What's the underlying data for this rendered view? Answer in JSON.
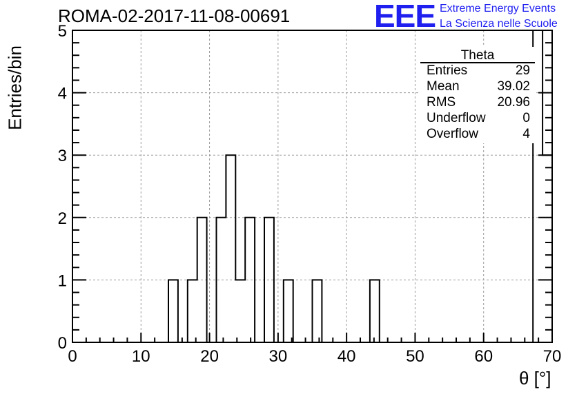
{
  "header": {
    "run_id": "ROMA-02-2017-11-08-00691",
    "logo": "EEE",
    "logo_line1": "Extreme Energy Events",
    "logo_line2": "La Scienza nelle Scuole"
  },
  "stats": {
    "name": "Theta",
    "rows": [
      {
        "key": "Entries",
        "value": "29"
      },
      {
        "key": "Mean",
        "value": "39.02"
      },
      {
        "key": "RMS",
        "value": "20.96"
      },
      {
        "key": "Underflow",
        "value": "0"
      },
      {
        "key": "Overflow",
        "value": "4"
      }
    ]
  },
  "chart_data": {
    "type": "bar",
    "histogram": true,
    "bin_width": 1.4,
    "bins": [
      {
        "x0": 14.0,
        "x1": 15.4,
        "count": 1
      },
      {
        "x0": 16.8,
        "x1": 18.2,
        "count": 1
      },
      {
        "x0": 18.2,
        "x1": 19.6,
        "count": 2
      },
      {
        "x0": 21.0,
        "x1": 22.4,
        "count": 2
      },
      {
        "x0": 22.4,
        "x1": 23.8,
        "count": 3
      },
      {
        "x0": 23.8,
        "x1": 25.2,
        "count": 1
      },
      {
        "x0": 25.2,
        "x1": 26.6,
        "count": 2
      },
      {
        "x0": 28.0,
        "x1": 29.4,
        "count": 2
      },
      {
        "x0": 30.8,
        "x1": 32.2,
        "count": 1
      },
      {
        "x0": 35.0,
        "x1": 36.4,
        "count": 1
      },
      {
        "x0": 43.4,
        "x1": 44.8,
        "count": 1
      },
      {
        "x0": 67.2,
        "x1": 68.6,
        "count": 5
      },
      {
        "x0": 68.6,
        "x1": 70.0,
        "count": 3
      }
    ],
    "xlabel": "θ [°]",
    "ylabel": "Entries/bin",
    "xlim": [
      0,
      70
    ],
    "ylim": [
      0,
      5
    ],
    "xticks": [
      0,
      10,
      20,
      30,
      40,
      50,
      60,
      70
    ],
    "yticks": [
      0,
      1,
      2,
      3,
      4,
      5
    ],
    "grid": true,
    "colors": {
      "line": "#000000",
      "grid": "#9a9a9a",
      "logo": "#1f1ff0"
    }
  }
}
